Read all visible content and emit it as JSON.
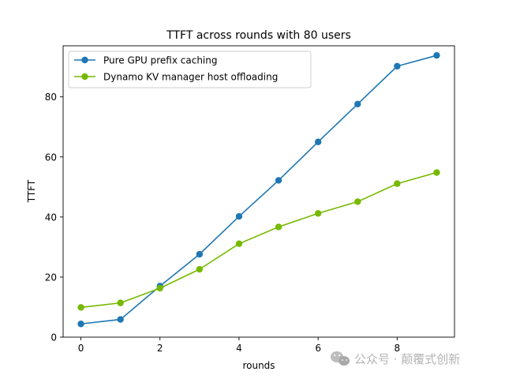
{
  "chart_data": {
    "type": "line",
    "title": "TTFT across rounds with 80 users",
    "xlabel": "rounds",
    "ylabel": "TTFT",
    "x": [
      0,
      1,
      2,
      3,
      4,
      5,
      6,
      7,
      8,
      9
    ],
    "xlim": [
      -0.45,
      9.45
    ],
    "ylim": [
      0,
      97
    ],
    "xticks": [
      0,
      2,
      4,
      6,
      8
    ],
    "yticks": [
      0,
      20,
      40,
      60,
      80
    ],
    "grid": false,
    "legend_position": "top-left",
    "series": [
      {
        "name": "Pure GPU prefix caching",
        "color": "#1f77b4",
        "values": [
          4.4,
          5.9,
          17.0,
          27.6,
          40.2,
          52.2,
          65.0,
          77.6,
          90.2,
          93.8
        ]
      },
      {
        "name": "Dynamo KV manager host offloading",
        "color": "#76b900",
        "values": [
          9.9,
          11.4,
          16.3,
          22.6,
          31.1,
          36.7,
          41.2,
          45.1,
          51.1,
          54.8
        ]
      }
    ]
  },
  "watermark": {
    "icon": "wechat-icon",
    "text": "公众号 · 颠覆式创新"
  }
}
